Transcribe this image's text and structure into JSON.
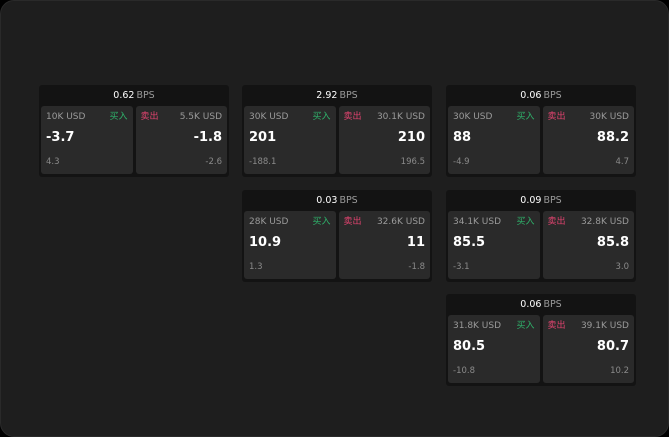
{
  "labels": {
    "buy": "买入",
    "sell": "卖出",
    "unit": "BPS"
  },
  "colors": {
    "buy": "#2fb36b",
    "sell": "#e0436f",
    "background": "#1e1e1e",
    "tile": "#2a2a2a"
  },
  "cards": [
    {
      "spread": "0.62",
      "bid": {
        "size": "10K USD",
        "price": "-3.7",
        "change": "4.3"
      },
      "ask": {
        "size": "5.5K USD",
        "price": "-1.8",
        "change": "-2.6"
      }
    },
    {
      "spread": "2.92",
      "bid": {
        "size": "30K USD",
        "price": "201",
        "change": "-188.1"
      },
      "ask": {
        "size": "30.1K USD",
        "price": "210",
        "change": "196.5"
      }
    },
    {
      "spread": "0.06",
      "bid": {
        "size": "30K USD",
        "price": "88",
        "change": "-4.9"
      },
      "ask": {
        "size": "30K USD",
        "price": "88.2",
        "change": "4.7"
      }
    },
    {
      "spread": "0.03",
      "bid": {
        "size": "28K USD",
        "price": "10.9",
        "change": "1.3"
      },
      "ask": {
        "size": "32.6K USD",
        "price": "11",
        "change": "-1.8"
      }
    },
    {
      "spread": "0.09",
      "bid": {
        "size": "34.1K USD",
        "price": "85.5",
        "change": "-3.1"
      },
      "ask": {
        "size": "32.8K USD",
        "price": "85.8",
        "change": "3.0"
      }
    },
    {
      "spread": "0.06",
      "bid": {
        "size": "31.8K USD",
        "price": "80.5",
        "change": "-10.8"
      },
      "ask": {
        "size": "39.1K USD",
        "price": "80.7",
        "change": "10.2"
      }
    }
  ]
}
